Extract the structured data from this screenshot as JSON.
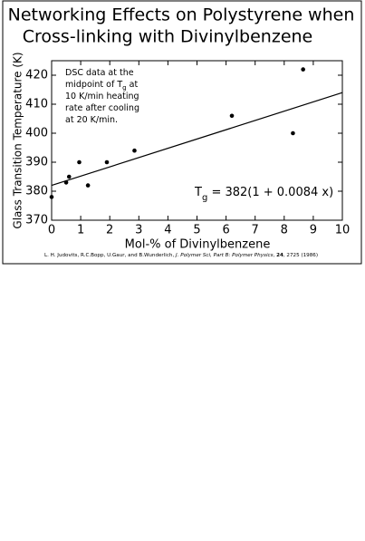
{
  "chart_data": {
    "type": "scatter",
    "title": [
      "Networking Effects on Polystyrene when",
      "Cross-linking with Divinylbenzene"
    ],
    "x_label": "Mol-% of Divinylbenzene",
    "y_label": "Glass Transition Temperature  (K)",
    "xlim": [
      0,
      10
    ],
    "xticks": [
      0,
      1,
      2,
      3,
      4,
      5,
      6,
      7,
      8,
      9,
      10
    ],
    "ylim": [
      370,
      425
    ],
    "yticks": [
      370,
      380,
      390,
      400,
      410,
      420
    ],
    "series": [
      {
        "mode": "markers",
        "color": "#000000",
        "x": [
          0,
          0.5,
          0.6,
          0.95,
          1.25,
          1.9,
          2.85,
          6.2,
          8.3,
          8.65
        ],
        "values": [
          378,
          383,
          385,
          390,
          382,
          390,
          394,
          406,
          400,
          422
        ]
      },
      {
        "mode": "line",
        "color": "#000000",
        "x": [
          0,
          10
        ],
        "values": [
          382,
          414
        ]
      }
    ],
    "annotation": [
      [
        "DSC data at the"
      ],
      [
        "midpoint of T",
        "g",
        " at"
      ],
      [
        "10 K/min heating"
      ],
      [
        "rate after cooling"
      ],
      [
        "at 20 K/min."
      ]
    ],
    "equation": [
      "T",
      "g",
      " = 382(1 + 0.0084 x)"
    ],
    "citation": [
      "L. H. Judovits, R.C.Bopp, U.Gaur, and B.Wunderlich, ",
      "J. Polymer Sci, Part B: Polymer Physics",
      ", ",
      "24",
      ", 2725 (1986)"
    ]
  }
}
